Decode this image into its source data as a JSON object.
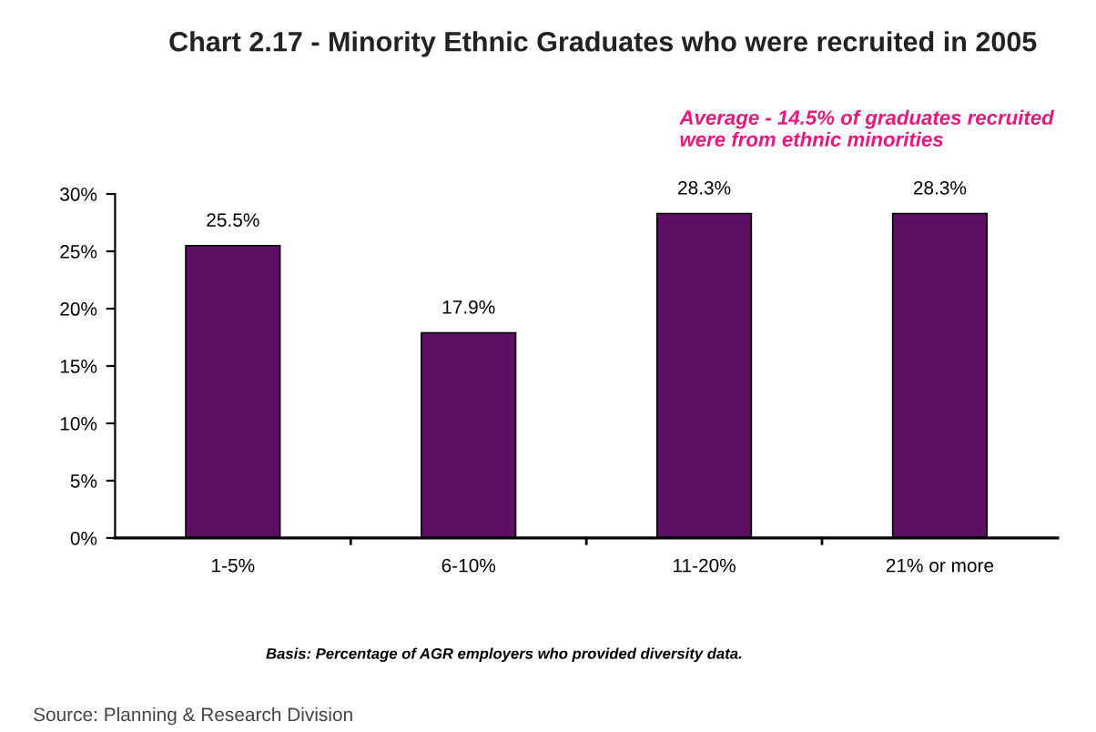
{
  "chart_data": {
    "type": "bar",
    "title": "Chart 2.17 - Minority Ethnic Graduates who were recruited in 2005",
    "categories": [
      "1-5%",
      "6-10%",
      "11-20%",
      "21% or more"
    ],
    "values": [
      25.5,
      17.9,
      28.3,
      28.3
    ],
    "value_labels": [
      "25.5%",
      "17.9%",
      "28.3%",
      "28.3%"
    ],
    "color": "#5c0f63",
    "ylim": [
      0,
      30
    ],
    "yticks": [
      {
        "value": 0,
        "label": "0%"
      },
      {
        "value": 5,
        "label": "5%"
      },
      {
        "value": 10,
        "label": "10%"
      },
      {
        "value": 15,
        "label": "15%"
      },
      {
        "value": 20,
        "label": "20%"
      },
      {
        "value": 25,
        "label": "25%"
      },
      {
        "value": 30,
        "label": "30%"
      }
    ],
    "grid": false,
    "legend": false,
    "annotations": [
      "Average - 14.5% of graduates recruited\nwere from ethnic minorities",
      "Basis: Percentage of AGR employers who provided diversity data.",
      "Source: Planning & Research Division"
    ]
  }
}
